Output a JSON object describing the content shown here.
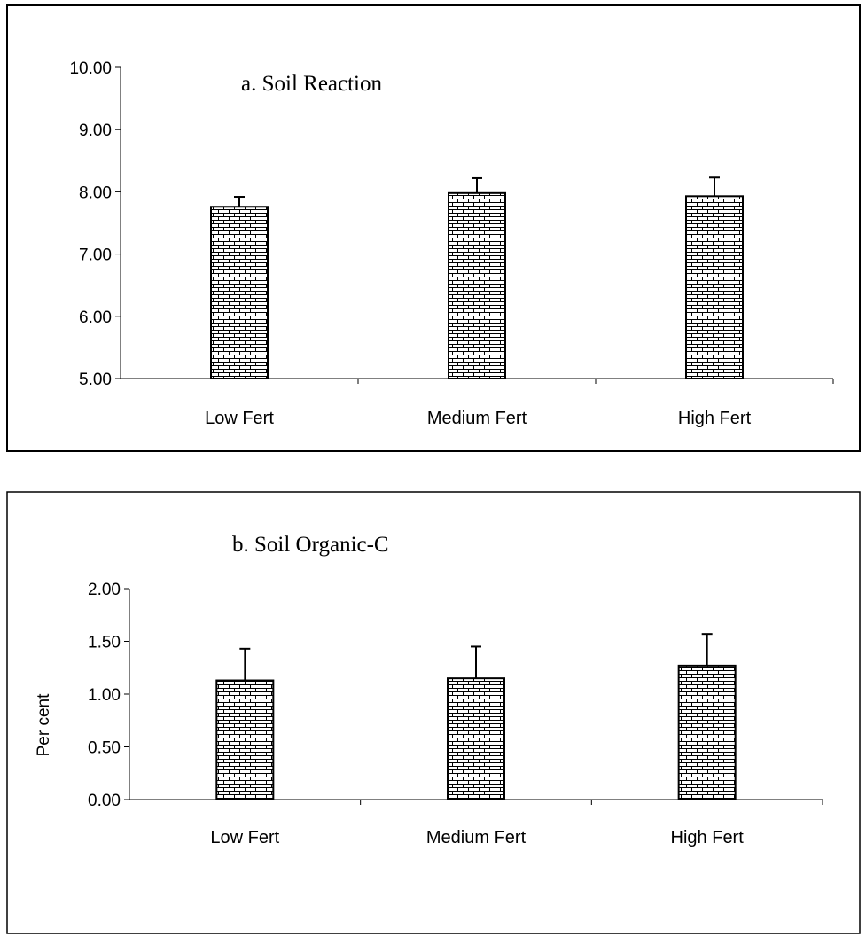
{
  "chart_data": [
    {
      "type": "bar",
      "title": "a. Soil Reaction",
      "xlabel": "",
      "ylabel": "",
      "categories": [
        "Low Fert",
        "Medium Fert",
        "High Fert"
      ],
      "values": [
        7.76,
        7.98,
        7.93
      ],
      "error": [
        0.16,
        0.24,
        0.3
      ],
      "ylim": [
        5.0,
        10.0
      ],
      "yticks": [
        "5.00",
        "6.00",
        "7.00",
        "8.00",
        "9.00",
        "10.00"
      ],
      "grid": false,
      "legend": "none",
      "fill_pattern": "brick"
    },
    {
      "type": "bar",
      "title": "b. Soil Organic-C",
      "xlabel": "",
      "ylabel": "Per cent",
      "categories": [
        "Low Fert",
        "Medium Fert",
        "High Fert"
      ],
      "values": [
        1.13,
        1.15,
        1.27
      ],
      "error": [
        0.3,
        0.3,
        0.3
      ],
      "ylim": [
        0.0,
        2.0
      ],
      "yticks": [
        "0.00",
        "0.50",
        "1.00",
        "1.50",
        "2.00"
      ],
      "grid": false,
      "legend": "none",
      "fill_pattern": "brick"
    }
  ],
  "colors": {
    "bar_fill": "#ffffff",
    "bar_pattern": "#000000",
    "frame": "#000000",
    "background": "#ffffff"
  }
}
